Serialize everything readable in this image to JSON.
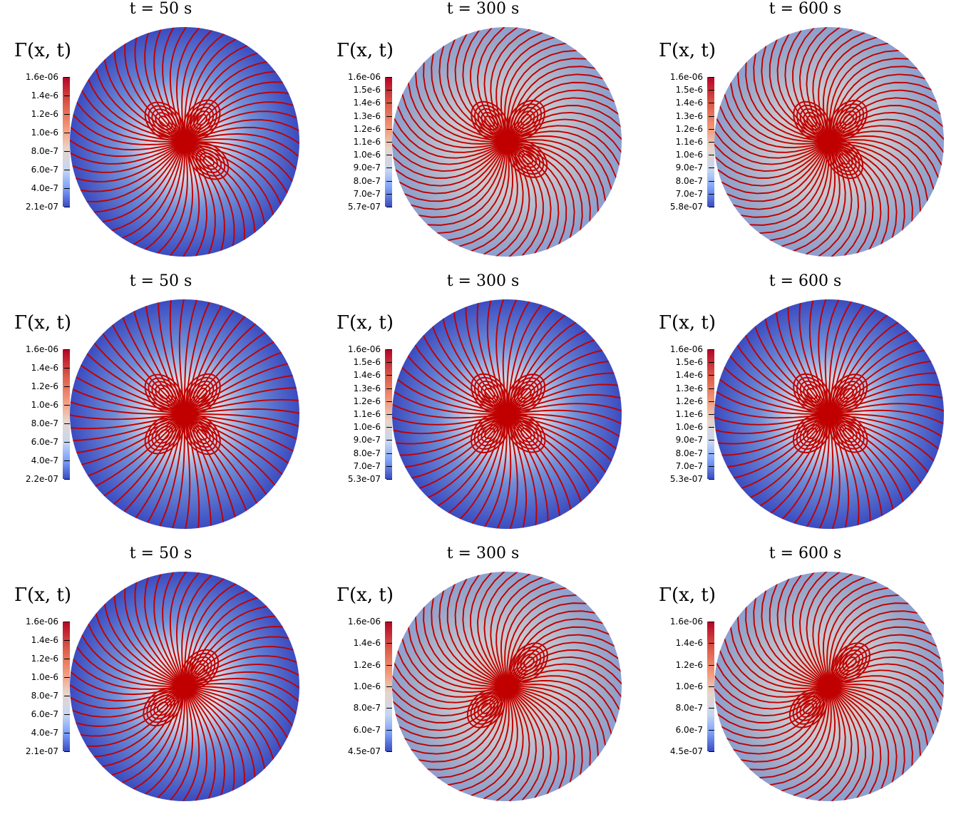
{
  "figure": {
    "colorbar_colors": [
      "#b40426",
      "#f39a7b",
      "#e8d5c9",
      "#7b9ff9",
      "#3b4cc0"
    ],
    "streamline_color": "#c00000",
    "panels": [
      {
        "title": "t = 50 s",
        "label": "Γ(x, t)",
        "ticks": [
          "1.6e-06",
          "1.4e-6",
          "1.2e-6",
          "1.0e-6",
          "8.0e-7",
          "6.0e-7",
          "4.0e-7",
          "2.1e-07"
        ]
      },
      {
        "title": "t = 300 s",
        "label": "Γ(x, t)",
        "ticks": [
          "1.6e-06",
          "1.5e-6",
          "1.4e-6",
          "1.3e-6",
          "1.2e-6",
          "1.1e-6",
          "1.0e-6",
          "9.0e-7",
          "8.0e-7",
          "7.0e-7",
          "5.7e-07"
        ]
      },
      {
        "title": "t = 600 s",
        "label": "Γ(x, t)",
        "ticks": [
          "1.6e-06",
          "1.5e-6",
          "1.4e-6",
          "1.3e-6",
          "1.2e-6",
          "1.1e-6",
          "1.0e-6",
          "9.0e-7",
          "8.0e-7",
          "7.0e-7",
          "5.8e-07"
        ]
      },
      {
        "title": "t = 50 s",
        "label": "Γ(x, t)",
        "ticks": [
          "1.6e-06",
          "1.4e-6",
          "1.2e-6",
          "1.0e-6",
          "8.0e-7",
          "6.0e-7",
          "4.0e-7",
          "2.2e-07"
        ]
      },
      {
        "title": "t = 300 s",
        "label": "Γ(x, t)",
        "ticks": [
          "1.6e-06",
          "1.5e-6",
          "1.4e-6",
          "1.3e-6",
          "1.2e-6",
          "1.1e-6",
          "1.0e-6",
          "9.0e-7",
          "8.0e-7",
          "7.0e-7",
          "5.3e-07"
        ]
      },
      {
        "title": "t = 600 s",
        "label": "Γ(x, t)",
        "ticks": [
          "1.6e-06",
          "1.5e-6",
          "1.4e-6",
          "1.3e-6",
          "1.2e-6",
          "1.1e-6",
          "1.0e-6",
          "9.0e-7",
          "8.0e-7",
          "7.0e-7",
          "5.3e-07"
        ]
      },
      {
        "title": "t = 50 s",
        "label": "Γ(x, t)",
        "ticks": [
          "1.6e-06",
          "1.4e-6",
          "1.2e-6",
          "1.0e-6",
          "8.0e-7",
          "6.0e-7",
          "4.0e-7",
          "2.1e-07"
        ]
      },
      {
        "title": "t = 300 s",
        "label": "Γ(x, t)",
        "ticks": [
          "1.6e-06",
          "1.4e-6",
          "1.2e-6",
          "1.0e-6",
          "8.0e-7",
          "6.0e-7",
          "4.5e-07"
        ]
      },
      {
        "title": "t = 600 s",
        "label": "Γ(x, t)",
        "ticks": [
          "1.6e-06",
          "1.4e-6",
          "1.2e-6",
          "1.0e-6",
          "8.0e-7",
          "6.0e-7",
          "4.5e-07"
        ]
      }
    ]
  }
}
